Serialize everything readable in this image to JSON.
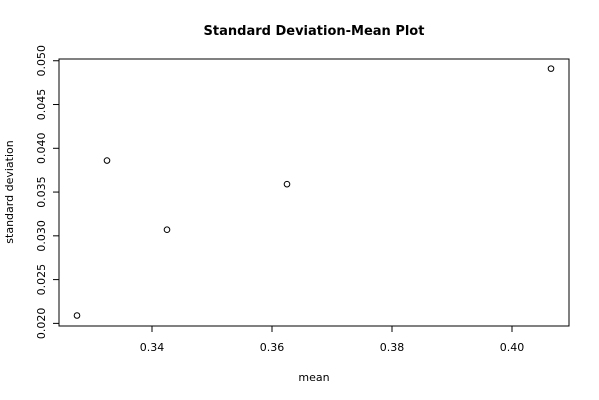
{
  "chart_data": {
    "type": "scatter",
    "title": "Standard Deviation-Mean Plot",
    "xlabel": "mean",
    "ylabel": "standard deviation",
    "xlim": [
      0.3245,
      0.4095
    ],
    "ylim": [
      0.0197,
      0.0502
    ],
    "xticks": [
      0.34,
      0.36,
      0.38,
      0.4
    ],
    "xtick_labels": [
      "0.34",
      "0.36",
      "0.38",
      "0.40"
    ],
    "yticks": [
      0.02,
      0.025,
      0.03,
      0.035,
      0.04,
      0.045,
      0.05
    ],
    "ytick_labels": [
      "0.020",
      "0.025",
      "0.030",
      "0.035",
      "0.040",
      "0.045",
      "0.050"
    ],
    "grid": false,
    "x": [
      0.3275,
      0.3325,
      0.3425,
      0.3625,
      0.4065
    ],
    "y": [
      0.0209,
      0.0386,
      0.0307,
      0.0359,
      0.0491
    ]
  }
}
